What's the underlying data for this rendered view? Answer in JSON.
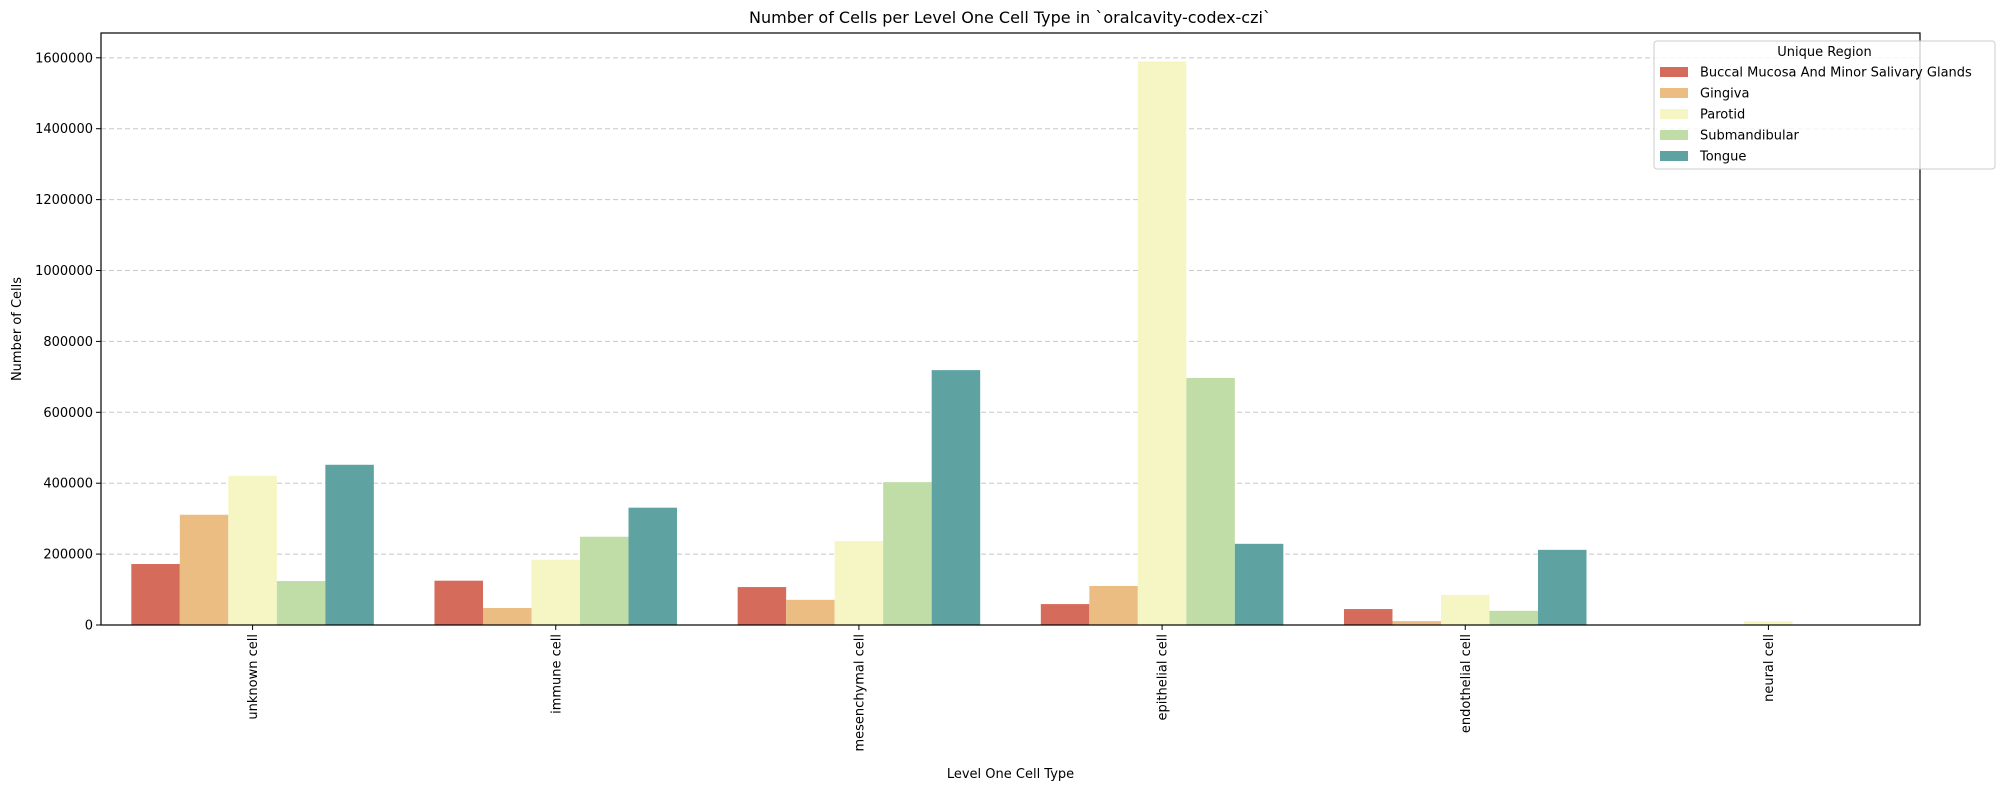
{
  "chart_data": {
    "type": "bar",
    "title": "Number of Cells per Level One Cell Type in `oralcavity-codex-czi`",
    "xlabel": "Level One Cell Type",
    "ylabel": "Number of Cells",
    "categories": [
      "unknown cell",
      "immune cell",
      "mesenchymal cell",
      "epithelial cell",
      "endothelial cell",
      "neural cell"
    ],
    "ylim": [
      0,
      1670000
    ],
    "yticks": [
      0,
      200000,
      400000,
      600000,
      800000,
      1000000,
      1200000,
      1400000,
      1600000
    ],
    "ytick_labels": [
      "0",
      "200000",
      "400000",
      "600000",
      "800000",
      "1000000",
      "1200000",
      "1400000",
      "1600000"
    ],
    "grid": "y-dashed",
    "legend": {
      "title": "Unique Region",
      "placement": "top-right"
    },
    "series": [
      {
        "name": "Buccal Mucosa And Minor Salivary Glands",
        "color": "#d56b5a",
        "values": [
          172000,
          125000,
          107000,
          59000,
          45000,
          0
        ]
      },
      {
        "name": "Gingiva",
        "color": "#ebbd83",
        "values": [
          311000,
          48000,
          71000,
          110000,
          11000,
          0
        ]
      },
      {
        "name": "Parotid",
        "color": "#f6f6c4",
        "values": [
          421000,
          184000,
          237000,
          1590000,
          85000,
          11000
        ]
      },
      {
        "name": "Submandibular",
        "color": "#c0dda7",
        "values": [
          124000,
          249000,
          403000,
          697000,
          40000,
          0
        ]
      },
      {
        "name": "Tongue",
        "color": "#5ea3a2",
        "values": [
          452000,
          331000,
          719000,
          229000,
          212000,
          0
        ]
      }
    ]
  }
}
